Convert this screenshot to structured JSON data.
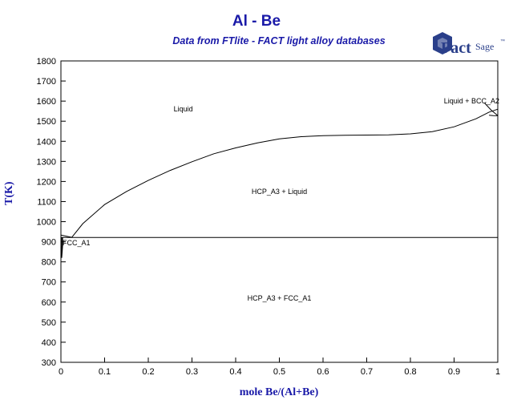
{
  "chart_data": {
    "type": "line",
    "title": "Al - Be",
    "subtitle": "Data from FTlite - FACT light alloy databases",
    "xlabel": "mole Be/(Al+Be)",
    "ylabel": "T(K)",
    "xlim": [
      0,
      1
    ],
    "ylim": [
      300,
      1800
    ],
    "xticks": [
      {
        "value": 0,
        "label": "0"
      },
      {
        "value": 0.1,
        "label": "0.1"
      },
      {
        "value": 0.2,
        "label": "0.2"
      },
      {
        "value": 0.3,
        "label": "0.3"
      },
      {
        "value": 0.4,
        "label": "0.4"
      },
      {
        "value": 0.5,
        "label": "0.5"
      },
      {
        "value": 0.6,
        "label": "0.6"
      },
      {
        "value": 0.7,
        "label": "0.7"
      },
      {
        "value": 0.8,
        "label": "0.8"
      },
      {
        "value": 0.9,
        "label": "0.9"
      },
      {
        "value": 1,
        "label": "1"
      }
    ],
    "yticks": [
      {
        "value": 300,
        "label": "300"
      },
      {
        "value": 400,
        "label": "400"
      },
      {
        "value": 500,
        "label": "500"
      },
      {
        "value": 600,
        "label": "600"
      },
      {
        "value": 700,
        "label": "700"
      },
      {
        "value": 800,
        "label": "800"
      },
      {
        "value": 900,
        "label": "900"
      },
      {
        "value": 1000,
        "label": "1000"
      },
      {
        "value": 1100,
        "label": "1100"
      },
      {
        "value": 1200,
        "label": "1200"
      },
      {
        "value": 1300,
        "label": "1300"
      },
      {
        "value": 1400,
        "label": "1400"
      },
      {
        "value": 1500,
        "label": "1500"
      },
      {
        "value": 1600,
        "label": "1600"
      },
      {
        "value": 1700,
        "label": "1700"
      },
      {
        "value": 1800,
        "label": "1800"
      }
    ],
    "grid": false,
    "series": [
      {
        "id": "liquidus",
        "x": [
          0.025,
          0.05,
          0.1,
          0.15,
          0.2,
          0.25,
          0.3,
          0.35,
          0.4,
          0.45,
          0.5,
          0.55,
          0.6,
          0.65,
          0.7,
          0.75,
          0.8,
          0.85,
          0.9,
          0.95,
          0.98,
          1.0
        ],
        "y": [
          922,
          990,
          1085,
          1150,
          1205,
          1255,
          1298,
          1338,
          1367,
          1392,
          1412,
          1423,
          1428,
          1430,
          1431,
          1432,
          1437,
          1448,
          1472,
          1512,
          1545,
          1560
        ]
      },
      {
        "id": "eutectic",
        "x": [
          0,
          1
        ],
        "y": [
          921,
          921
        ]
      },
      {
        "id": "al-liquidus-left",
        "x": [
          0,
          0.025
        ],
        "y": [
          933,
          922
        ]
      },
      {
        "id": "fcc-solvus",
        "x": [
          0.003,
          0.003,
          0.002,
          0.001
        ],
        "y": [
          921,
          880,
          850,
          820
        ]
      },
      {
        "id": "bcc-liquidus",
        "x": [
          0.97,
          0.985,
          1.0
        ],
        "y": [
          1590,
          1555,
          1528
        ]
      },
      {
        "id": "bcc-hcp-boundary",
        "x": [
          0.98,
          0.99,
          1.0
        ],
        "y": [
          1530,
          1528,
          1527
        ]
      }
    ],
    "annotations": [
      {
        "text": "Liquid",
        "x": 0.28,
        "y": 1560
      },
      {
        "text": "HCP_A3 + Liquid",
        "x": 0.5,
        "y": 1150
      },
      {
        "text": "HCP_A3 + FCC_A1",
        "x": 0.5,
        "y": 620
      },
      {
        "text": "FCC_A1",
        "x": 0.03,
        "y": 895
      },
      {
        "text": "Liquid + BCC_A2",
        "x": 0.94,
        "y": 1600
      }
    ]
  },
  "logo": {
    "brand": "FactSage",
    "mark_text": "Fact",
    "sub_text": "Sage",
    "tm": "™"
  }
}
